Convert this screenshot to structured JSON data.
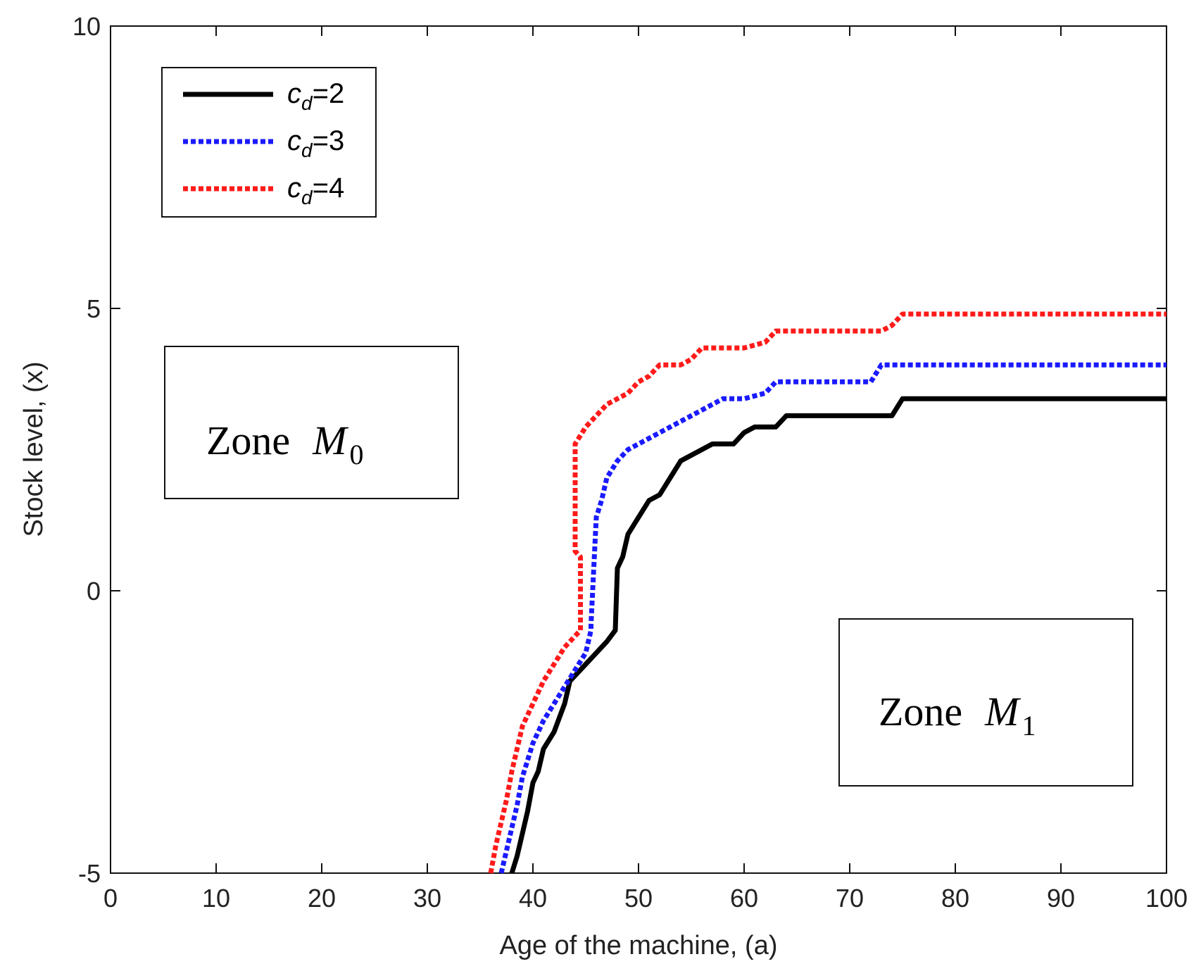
{
  "chart_data": {
    "type": "line",
    "title": "",
    "xlabel": "Age of the machine, (a)",
    "ylabel": "Stock level, (x)",
    "xlim": [
      0,
      100
    ],
    "ylim": [
      -5,
      10
    ],
    "xticks": [
      0,
      10,
      20,
      30,
      40,
      50,
      60,
      70,
      80,
      90,
      100
    ],
    "yticks": [
      -5,
      0,
      5,
      10
    ],
    "grid": false,
    "legend_position": "top-left",
    "series": [
      {
        "name": "c_d=2",
        "legend_symbol": "c",
        "legend_sub": "d",
        "legend_value": "=2",
        "color": "#000000",
        "style": "solid",
        "x": [
          38,
          38.5,
          39,
          39.5,
          40,
          40.5,
          41,
          42,
          43,
          43.5,
          44,
          45,
          46,
          47,
          47.8,
          48,
          48.5,
          49,
          50,
          51,
          52,
          53,
          54,
          55,
          56,
          57,
          59,
          60,
          61,
          63,
          64,
          65,
          74,
          75,
          100
        ],
        "y": [
          -5,
          -4.7,
          -4.3,
          -3.9,
          -3.4,
          -3.2,
          -2.8,
          -2.5,
          -2.0,
          -1.6,
          -1.5,
          -1.3,
          -1.1,
          -0.9,
          -0.7,
          0.4,
          0.6,
          1.0,
          1.3,
          1.6,
          1.7,
          2.0,
          2.3,
          2.4,
          2.5,
          2.6,
          2.6,
          2.8,
          2.9,
          2.9,
          3.1,
          3.1,
          3.1,
          3.4,
          3.4
        ]
      },
      {
        "name": "c_d=3",
        "legend_symbol": "c",
        "legend_sub": "d",
        "legend_value": "=3",
        "color": "#1a1aff",
        "style": "dotted",
        "x": [
          37,
          37.5,
          38,
          38.5,
          39,
          39.5,
          40,
          41,
          42,
          43,
          44,
          45,
          45.5,
          45.5,
          46,
          46.5,
          47,
          48,
          49,
          50,
          51,
          52,
          54,
          55,
          56,
          57,
          58,
          60,
          62,
          63,
          64,
          72,
          73,
          100
        ],
        "y": [
          -5,
          -4.6,
          -4.2,
          -3.8,
          -3.3,
          -3.0,
          -2.7,
          -2.3,
          -2.0,
          -1.7,
          -1.4,
          -1.1,
          -0.7,
          -0.6,
          1.3,
          1.6,
          2.0,
          2.3,
          2.5,
          2.6,
          2.7,
          2.8,
          3.0,
          3.1,
          3.2,
          3.3,
          3.4,
          3.4,
          3.5,
          3.7,
          3.7,
          3.7,
          4.0,
          4.0
        ]
      },
      {
        "name": "c_d=4",
        "legend_symbol": "c",
        "legend_sub": "d",
        "legend_value": "=4",
        "color": "#ff1a1a",
        "style": "dotted",
        "x": [
          36,
          36.5,
          37,
          37.5,
          38,
          38.5,
          39,
          40,
          41,
          42,
          43,
          44.5,
          44.5,
          44,
          44,
          45,
          46,
          47,
          48,
          49,
          50,
          51,
          52,
          54,
          55,
          56,
          57,
          60,
          62,
          63,
          64,
          73,
          74,
          75,
          100
        ],
        "y": [
          -5,
          -4.5,
          -4.1,
          -3.7,
          -3.2,
          -2.8,
          -2.4,
          -2.0,
          -1.6,
          -1.3,
          -1.0,
          -0.7,
          0.6,
          0.7,
          2.6,
          2.9,
          3.1,
          3.3,
          3.4,
          3.5,
          3.7,
          3.8,
          4.0,
          4.0,
          4.1,
          4.3,
          4.3,
          4.3,
          4.4,
          4.6,
          4.6,
          4.6,
          4.7,
          4.9,
          4.9
        ]
      }
    ],
    "annotations": [
      {
        "name": "zone-m0",
        "text": "Zone",
        "symbol": "M",
        "subscript": "0"
      },
      {
        "name": "zone-m1",
        "text": "Zone",
        "symbol": "M",
        "subscript": "1"
      }
    ]
  }
}
